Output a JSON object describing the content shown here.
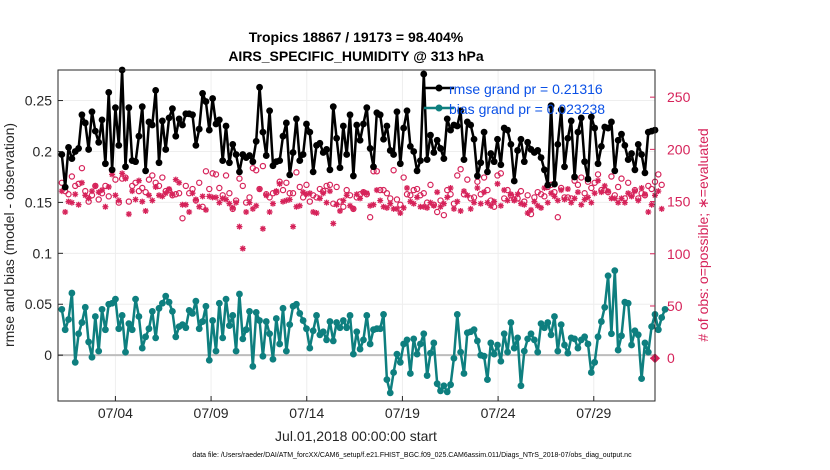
{
  "chart_data": {
    "type": "line",
    "title": "Tropics 18867 / 19173 = 98.404%",
    "subtitle": "AIRS_SPECIFIC_HUMIDITY @ 313 hPa",
    "xlabel": "Jul.01,2018 00:00:00 start",
    "ylabel": "rmse and bias (model - observation)",
    "ylabel_right": "# of obs: o=possible; ∗=evaluated",
    "footnote": "data file: /Users/raeder/DAI/ATM_forcXX/CAM6_setup/f.e21.FHIST_BGC.f09_025.CAM6assim.011/Diags_NTrS_2018-07/obs_diag_output.nc",
    "xlim": [
      1.0,
      32.2
    ],
    "ylim": [
      -0.045,
      0.28
    ],
    "ylim_right": [
      -41,
      276
    ],
    "x_ticks": [
      4,
      9,
      14,
      19,
      24,
      29
    ],
    "x_tick_labels": [
      "07/04",
      "07/09",
      "07/14",
      "07/19",
      "07/24",
      "07/29"
    ],
    "y_ticks": [
      0,
      0.05,
      0.1,
      0.15,
      0.2,
      0.25
    ],
    "y_tick_labels": [
      "0",
      "0.05",
      "0.1",
      "0.15",
      "0.2",
      "0.25"
    ],
    "y_right_ticks": [
      0,
      50,
      100,
      150,
      200,
      250
    ],
    "y_right_tick_labels": [
      "0",
      "50",
      "100",
      "150",
      "200",
      "250"
    ],
    "colors": {
      "rmse": "#000000",
      "bias": "#0e7f7f",
      "obs": "#d6235a",
      "zero": "#bdbdbd"
    },
    "legend": {
      "placement": "top-right",
      "entries": [
        "rmse grand pr = 0.21316",
        "bias grand pr = 0.023238"
      ]
    },
    "series": [
      {
        "name": "rmse",
        "values": [
          0.197,
          0.165,
          0.204,
          0.193,
          0.2,
          0.203,
          0.236,
          0.228,
          0.202,
          0.239,
          0.22,
          0.209,
          0.231,
          0.188,
          0.258,
          0.182,
          0.243,
          0.206,
          0.28,
          0.185,
          0.243,
          0.191,
          0.19,
          0.215,
          0.244,
          0.181,
          0.229,
          0.226,
          0.26,
          0.189,
          0.23,
          0.202,
          0.233,
          0.242,
          0.215,
          0.232,
          0.226,
          0.237,
          0.237,
          0.236,
          0.206,
          0.222,
          0.257,
          0.249,
          0.221,
          0.252,
          0.227,
          0.231,
          0.191,
          0.225,
          0.189,
          0.207,
          0.197,
          0.18,
          0.197,
          0.194,
          0.196,
          0.19,
          0.21,
          0.263,
          0.219,
          0.196,
          0.24,
          0.186,
          0.19,
          0.191,
          0.215,
          0.228,
          0.177,
          0.199,
          0.232,
          0.191,
          0.197,
          0.227,
          0.219,
          0.18,
          0.206,
          0.208,
          0.199,
          0.202,
          0.182,
          0.244,
          0.213,
          0.184,
          0.225,
          0.197,
          0.236,
          0.176,
          0.226,
          0.211,
          0.227,
          0.243,
          0.203,
          0.185,
          0.238,
          0.236,
          0.212,
          0.225,
          0.201,
          0.197,
          0.239,
          0.188,
          0.223,
          0.24,
          0.205,
          0.2,
          0.181,
          0.191,
          0.276,
          0.192,
          0.216,
          0.199,
          0.211,
          0.203,
          0.193,
          0.232,
          0.221,
          0.226,
          0.225,
          0.24,
          0.192,
          0.229,
          0.226,
          0.212,
          0.176,
          0.189,
          0.219,
          0.18,
          0.198,
          0.19,
          0.212,
          0.187,
          0.223,
          0.221,
          0.207,
          0.171,
          0.201,
          0.212,
          0.19,
          0.209,
          0.202,
          0.199,
          0.201,
          0.194,
          0.182,
          0.167,
          0.245,
          0.168,
          0.207,
          0.241,
          0.185,
          0.213,
          0.23,
          0.175,
          0.219,
          0.233,
          0.19,
          0.173,
          0.234,
          0.223,
          0.188,
          0.205,
          0.224,
          0.223,
          0.229,
          0.181,
          0.211,
          0.217,
          0.206,
          0.192,
          0.198,
          0.182,
          0.207,
          0.197,
          0.179,
          0.219,
          0.22,
          0.221
        ]
      },
      {
        "name": "bias",
        "values": [
          0.045,
          0.025,
          0.035,
          0.061,
          -0.007,
          0.021,
          0.032,
          0.047,
          0.013,
          -0.002,
          0.038,
          0.004,
          0.045,
          0.025,
          0.05,
          0.051,
          0.055,
          0.026,
          0.039,
          0.003,
          0.031,
          0.025,
          0.055,
          0.038,
          0.007,
          0.018,
          0.026,
          0.043,
          0.017,
          0.046,
          0.051,
          0.058,
          0.052,
          0.043,
          0.018,
          0.028,
          0.03,
          0.027,
          0.044,
          0.041,
          0.053,
          0.026,
          0.033,
          0.048,
          -0.005,
          0.034,
          0.004,
          0.051,
          0.017,
          0.055,
          0.029,
          0.039,
          0.004,
          0.06,
          0.016,
          0.025,
          0.043,
          -0.011,
          0.042,
          0.034,
          -0.001,
          0.033,
          0.021,
          -0.004,
          0.036,
          0.011,
          0.046,
          0.004,
          0.03,
          0.048,
          0.05,
          0.041,
          0.034,
          0.026,
          0.007,
          0.024,
          0.039,
          0.02,
          0.023,
          0.015,
          0.033,
          0.014,
          0.032,
          0.027,
          0.034,
          0.027,
          0.039,
          0.001,
          0.023,
          0.006,
          0.015,
          0.039,
          0.011,
          0.025,
          0.026,
          0.026,
          0.04,
          -0.024,
          -0.037,
          -0.017,
          0.001,
          -0.007,
          0.011,
          0.015,
          -0.018,
          0.016,
          0.001,
          0.011,
          0.021,
          -0.02,
          0.002,
          0.012,
          -0.028,
          -0.035,
          -0.03,
          -0.036,
          -0.029,
          -0.003,
          0.04,
          0.003,
          -0.018,
          0.022,
          0.023,
          0.025,
          0.014,
          0.0,
          -0.001,
          -0.024,
          0.012,
          0.001,
          0.01,
          -0.006,
          0.021,
          0.003,
          0.032,
          0.007,
          0.017,
          -0.03,
          0.004,
          0.016,
          0.021,
          0.015,
          0.003,
          0.031,
          0.027,
          0.032,
          0.02,
          0.038,
          0.004,
          0.03,
          0.01,
          0.002,
          0.017,
          0.016,
          0.007,
          0.015,
          0.018,
          0.011,
          -0.017,
          -0.007,
          0.018,
          0.033,
          0.047,
          0.078,
          0.021,
          0.083,
          0.005,
          0.019,
          0.052,
          0.051,
          0.01,
          0.024,
          0.02,
          -0.023,
          0.012,
          0.003,
          0.028,
          0.04,
          0.025,
          0.037,
          0.045
        ]
      },
      {
        "name": "obs possible",
        "values": [
          168,
          160,
          157,
          174,
          165,
          167,
          182,
          160,
          150,
          156,
          165,
          152,
          158,
          165,
          155,
          180,
          171,
          149,
          172,
          173,
          150,
          165,
          168,
          160,
          163,
          159,
          171,
          175,
          168,
          165,
          173,
          160,
          161,
          156,
          157,
          158,
          134,
          165,
          158,
          162,
          151,
          168,
          145,
          179,
          162,
          177,
          176,
          163,
          156,
          175,
          158,
          143,
          151,
          172,
          165,
          149,
          154,
          182,
          180,
          162,
          184,
          157,
          154,
          158,
          159,
          169,
          161,
          168,
          158,
          158,
          178,
          164,
          154,
          166,
          150,
          156,
          154,
          162,
          160,
          165,
          166,
          148,
          164,
          150,
          145,
          161,
          156,
          143,
          154,
          157,
          159,
          157,
          135,
          179,
          179,
          161,
          161,
          158,
          153,
          180,
          152,
          147,
          173,
          157,
          156,
          161,
          162,
          156,
          158,
          149,
          166,
          147,
          140,
          151,
          137,
          161,
          157,
          148,
          175,
          181,
          157,
          171,
          153,
          154,
          169,
          157,
          173,
          161,
          151,
          145,
          175,
          177,
          153,
          161,
          156,
          152,
          153,
          160,
          150,
          156,
          138,
          154,
          159,
          157,
          155,
          164,
          166,
          159,
          135,
          163,
          154,
          154,
          153,
          170,
          166,
          173,
          158,
          169,
          163,
          168,
          176,
          161,
          161,
          159,
          174,
          156,
          164,
          172,
          153,
          168,
          156,
          161,
          153,
          158,
          156,
          165,
          162,
          169,
          176,
          166
        ]
      },
      {
        "name": "obs evaluated",
        "values": [
          160,
          140,
          150,
          149,
          157,
          147,
          168,
          156,
          153,
          160,
          165,
          159,
          161,
          145,
          164,
          176,
          156,
          151,
          177,
          172,
          138,
          160,
          152,
          170,
          150,
          141,
          156,
          151,
          164,
          156,
          155,
          158,
          162,
          157,
          171,
          168,
          147,
          147,
          140,
          158,
          152,
          145,
          155,
          142,
          155,
          154,
          154,
          149,
          153,
          152,
          148,
          144,
          149,
          126,
          105,
          140,
          149,
          143,
          146,
          162,
          124,
          156,
          140,
          148,
          160,
          167,
          150,
          151,
          152,
          126,
          145,
          146,
          159,
          157,
          158,
          140,
          139,
          153,
          158,
          149,
          160,
          129,
          147,
          141,
          151,
          156,
          146,
          143,
          157,
          153,
          159,
          158,
          146,
          147,
          161,
          151,
          145,
          144,
          148,
          143,
          143,
          139,
          144,
          163,
          150,
          148,
          154,
          145,
          145,
          144,
          149,
          146,
          159,
          145,
          148,
          154,
          163,
          143,
          150,
          141,
          160,
          156,
          143,
          149,
          163,
          148,
          159,
          149,
          146,
          150,
          167,
          146,
          161,
          151,
          157,
          151,
          157,
          148,
          147,
          139,
          142,
          150,
          146,
          144,
          163,
          149,
          158,
          155,
          151,
          161,
          152,
          162,
          149,
          153,
          159,
          147,
          152,
          154,
          149,
          158,
          170,
          159,
          165,
          160,
          153,
          153,
          149,
          153,
          149,
          158,
          155,
          160,
          151,
          163,
          157,
          140,
          147,
          156,
          160,
          143
        ]
      }
    ]
  }
}
